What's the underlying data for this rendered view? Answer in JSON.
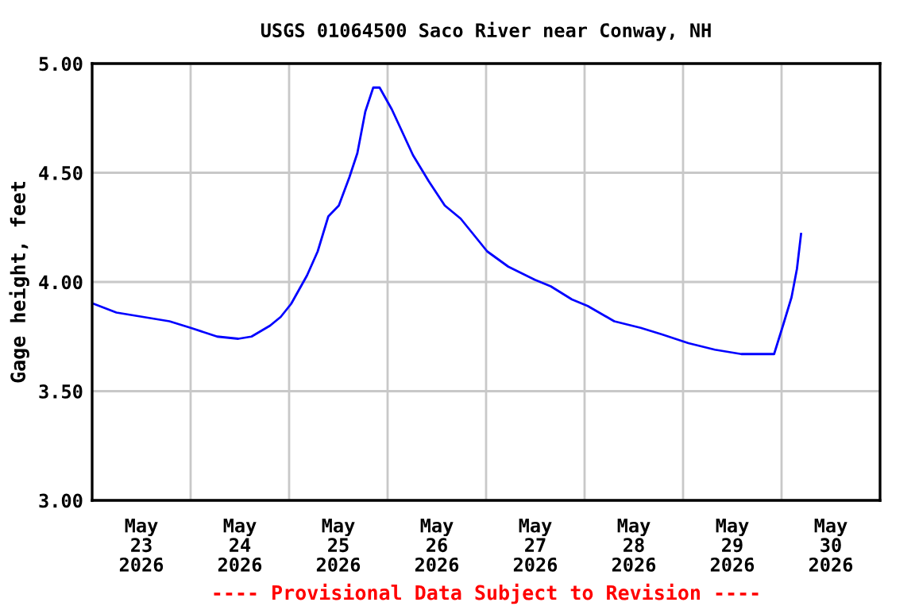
{
  "chart_data": {
    "type": "line",
    "title": "USGS 01064500 Saco River near Conway, NH",
    "ylabel": "Gage height, feet",
    "annotations": [
      "---- Provisional Data Subject to Revision ----"
    ],
    "x": [
      "2026-05-23T00:23",
      "2026-05-23T05:55",
      "2026-05-23T12:23",
      "2026-05-23T18:51",
      "2026-05-24T00:00",
      "2026-05-24T06:28",
      "2026-05-24T11:37",
      "2026-05-24T14:50",
      "2026-05-24T19:21",
      "2026-05-24T21:57",
      "2026-05-25T00:30",
      "2026-05-25T04:22",
      "2026-05-25T06:58",
      "2026-05-25T09:33",
      "2026-05-25T12:07",
      "2026-05-25T14:42",
      "2026-05-25T16:38",
      "2026-05-25T18:34",
      "2026-05-25T20:30",
      "2026-05-25T22:03",
      "2026-05-26T01:02",
      "2026-05-26T06:12",
      "2026-05-26T10:04",
      "2026-05-26T13:56",
      "2026-05-26T17:48",
      "2026-05-26T21:41",
      "2026-05-27T00:16",
      "2026-05-27T05:25",
      "2026-05-27T11:53",
      "2026-05-27T15:46",
      "2026-05-27T20:55",
      "2026-05-28T00:46",
      "2026-05-28T07:14",
      "2026-05-28T13:40",
      "2026-05-28T18:51",
      "2026-05-29T01:17",
      "2026-05-29T07:44",
      "2026-05-29T14:11",
      "2026-05-29T18:04",
      "2026-05-29T22:11",
      "2026-05-30T00:30",
      "2026-05-30T02:26",
      "2026-05-30T03:45",
      "2026-05-30T04:45"
    ],
    "series": [
      {
        "color": "#0000ff",
        "values": [
          3.9,
          3.86,
          3.84,
          3.82,
          3.79,
          3.75,
          3.74,
          3.75,
          3.8,
          3.84,
          3.9,
          4.03,
          4.14,
          4.3,
          4.35,
          4.48,
          4.59,
          4.78,
          4.89,
          4.89,
          4.79,
          4.58,
          4.46,
          4.35,
          4.29,
          4.2,
          4.14,
          4.07,
          4.01,
          3.98,
          3.92,
          3.89,
          3.82,
          3.79,
          3.76,
          3.72,
          3.69,
          3.67,
          3.67,
          3.67,
          3.81,
          3.93,
          4.06,
          4.22
        ]
      }
    ],
    "xlim": [
      "2026-05-23T00:00",
      "2026-05-31T00:00"
    ],
    "xticks": [
      {
        "value": "2026-05-23T12:00",
        "label": "May\n23\n2026"
      },
      {
        "value": "2026-05-24T12:00",
        "label": "May\n24\n2026"
      },
      {
        "value": "2026-05-25T12:00",
        "label": "May\n25\n2026"
      },
      {
        "value": "2026-05-26T12:00",
        "label": "May\n26\n2026"
      },
      {
        "value": "2026-05-27T12:00",
        "label": "May\n27\n2026"
      },
      {
        "value": "2026-05-28T12:00",
        "label": "May\n28\n2026"
      },
      {
        "value": "2026-05-29T12:00",
        "label": "May\n29\n2026"
      },
      {
        "value": "2026-05-30T12:00",
        "label": "May\n30\n2026"
      },
      {
        "value": "2026-05-24T00:00",
        "label": null
      },
      {
        "value": "2026-05-25T00:00",
        "label": null
      },
      {
        "value": "2026-05-26T00:00",
        "label": null
      },
      {
        "value": "2026-05-27T00:00",
        "label": null
      },
      {
        "value": "2026-05-28T00:00",
        "label": null
      },
      {
        "value": "2026-05-29T00:00",
        "label": null
      },
      {
        "value": "2026-05-30T00:00",
        "label": null
      }
    ],
    "ylim": [
      3.0,
      5.0
    ],
    "yticks": [
      {
        "value": 3.0,
        "label": "3.00"
      },
      {
        "value": 3.5,
        "label": "3.50"
      },
      {
        "value": 4.0,
        "label": "4.00"
      },
      {
        "value": 4.5,
        "label": "4.50"
      },
      {
        "value": 5.0,
        "label": "5.00"
      }
    ],
    "grid": true,
    "legend": false,
    "marker": "none",
    "line_style": "solid"
  }
}
